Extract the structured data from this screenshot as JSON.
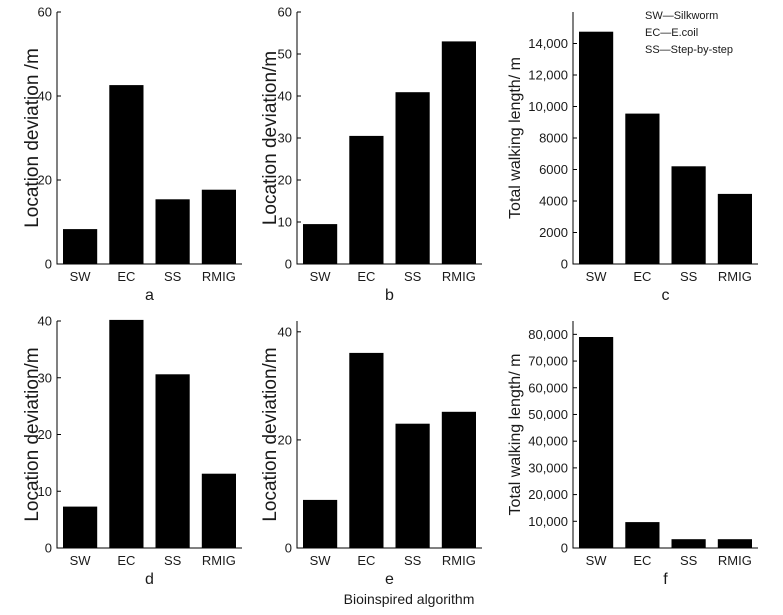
{
  "figure": {
    "shared_xlabel": "Bioinspired algorithm",
    "legend_lines": [
      "SW—Silkworm",
      "EC—E.coil",
      "SS—Step-by-step"
    ]
  },
  "chart_data": [
    {
      "id": "a",
      "type": "bar",
      "categories": [
        "SW",
        "EC",
        "SS",
        "RMIG"
      ],
      "values": [
        8.3,
        42.6,
        15.4,
        17.7
      ],
      "ylabel": "Location deviation /m",
      "xlabel": "",
      "ylim": [
        0,
        60
      ],
      "yticks": [
        0,
        20,
        40,
        60
      ],
      "ytick_labels": [
        "0",
        "20",
        "40",
        "60"
      ],
      "caption": "a"
    },
    {
      "id": "b",
      "type": "bar",
      "categories": [
        "SW",
        "EC",
        "SS",
        "RMIG"
      ],
      "values": [
        9.5,
        30.5,
        40.9,
        53.0
      ],
      "ylabel": "Location deviation/m",
      "xlabel": "",
      "ylim": [
        0,
        60
      ],
      "yticks": [
        0,
        10,
        20,
        30,
        40,
        50,
        60
      ],
      "ytick_labels": [
        "0",
        "10",
        "20",
        "30",
        "40",
        "50",
        "60"
      ],
      "caption": "b"
    },
    {
      "id": "c",
      "type": "bar",
      "categories": [
        "SW",
        "EC",
        "SS",
        "RMIG"
      ],
      "values": [
        14750,
        9550,
        6200,
        4450
      ],
      "ylabel": "Total walking length/ m",
      "xlabel": "",
      "ylim": [
        0,
        16000
      ],
      "yticks": [
        0,
        2000,
        4000,
        6000,
        8000,
        10000,
        12000,
        14000
      ],
      "ytick_labels": [
        "0",
        "2000",
        "4000",
        "6000",
        "8000",
        "10,000",
        "12,000",
        "14,000"
      ],
      "caption": "c"
    },
    {
      "id": "d",
      "type": "bar",
      "categories": [
        "SW",
        "EC",
        "SS",
        "RMIG"
      ],
      "values": [
        7.3,
        40.2,
        30.6,
        13.1
      ],
      "ylabel": "Location deviation/m",
      "xlabel": "",
      "ylim": [
        0,
        40
      ],
      "yticks": [
        0,
        10,
        20,
        30,
        40
      ],
      "ytick_labels": [
        "0",
        "10",
        "20",
        "30",
        "40"
      ],
      "caption": "d"
    },
    {
      "id": "e",
      "type": "bar",
      "categories": [
        "SW",
        "EC",
        "SS",
        "RMIG"
      ],
      "values": [
        8.9,
        36.1,
        23.0,
        25.2
      ],
      "ylabel": "Location deviation/m",
      "xlabel": "",
      "ylim": [
        0,
        42
      ],
      "yticks": [
        0,
        20,
        40
      ],
      "ytick_labels": [
        "0",
        "20",
        "40"
      ],
      "caption": "e"
    },
    {
      "id": "f",
      "type": "bar",
      "categories": [
        "SW",
        "EC",
        "SS",
        "RMIG"
      ],
      "values": [
        79000,
        9700,
        3300,
        3300
      ],
      "ylabel": "Total walking length/ m",
      "xlabel": "",
      "ylim": [
        0,
        85000
      ],
      "yticks": [
        0,
        10000,
        20000,
        30000,
        40000,
        50000,
        60000,
        70000,
        80000
      ],
      "ytick_labels": [
        "0",
        "10,000",
        "20,000",
        "30,000",
        "40,000",
        "50,000",
        "60,000",
        "70,000",
        "80,000"
      ],
      "caption": "f"
    }
  ]
}
